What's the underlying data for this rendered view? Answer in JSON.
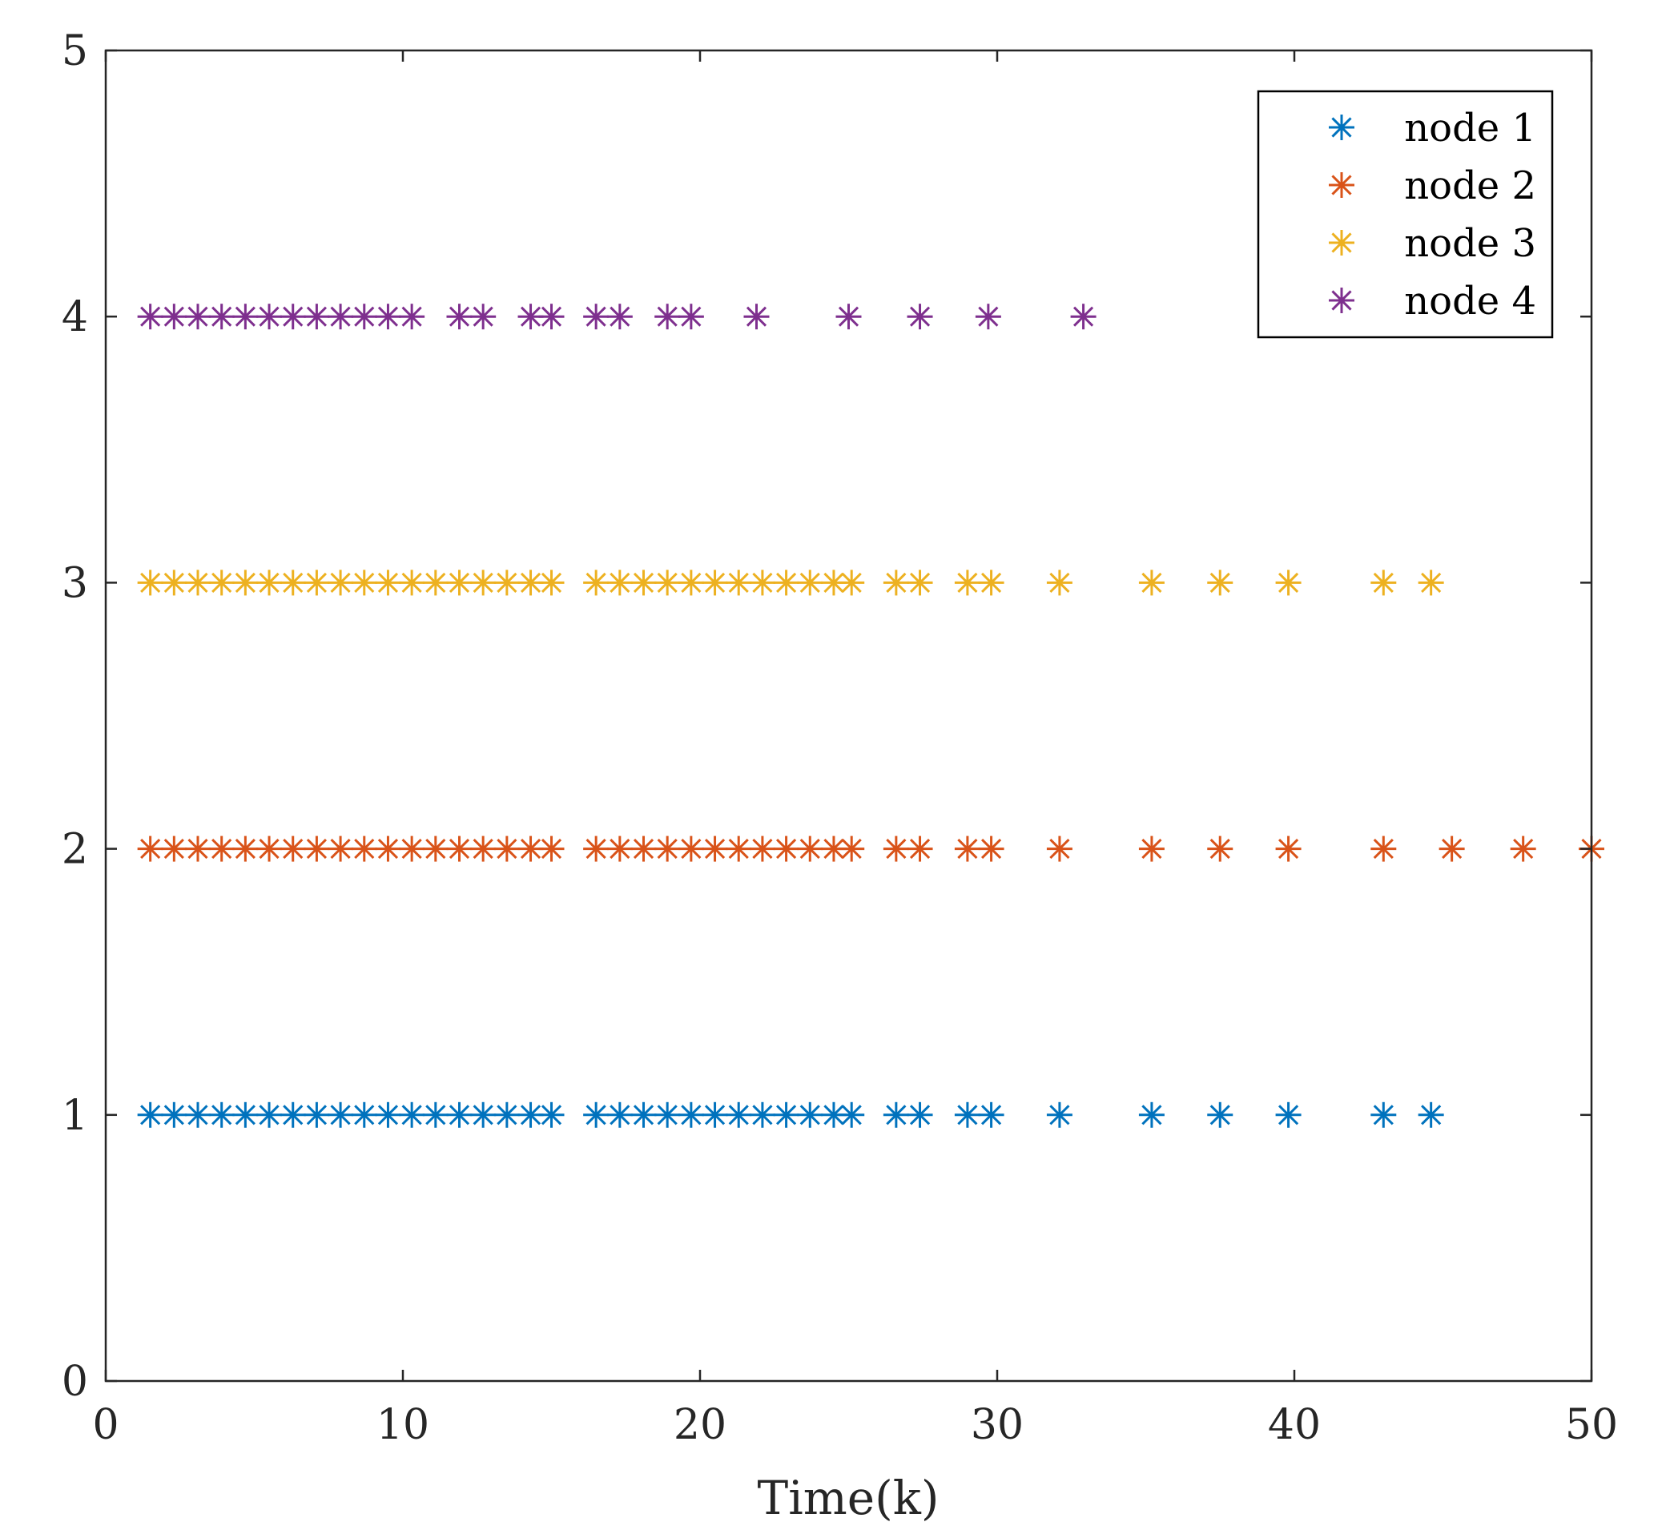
{
  "chart_data": {
    "type": "scatter",
    "title": "",
    "xlabel": "Time(k)",
    "ylabel": "",
    "xlim": [
      0,
      50
    ],
    "ylim": [
      0,
      5
    ],
    "xticks": [
      "0",
      "10",
      "20",
      "30",
      "40",
      "50"
    ],
    "yticks": [
      "0",
      "1",
      "2",
      "3",
      "4",
      "5"
    ],
    "grid": false,
    "legend_position": "top-right",
    "marker": "asterisk",
    "series": [
      {
        "name": "node 1",
        "color": "#0072BD",
        "y": 1,
        "x": [
          1.5,
          2.3,
          3.1,
          3.9,
          4.7,
          5.5,
          6.3,
          7.1,
          7.9,
          8.7,
          9.5,
          10.3,
          11.1,
          11.9,
          12.7,
          13.5,
          14.3,
          15.0,
          16.5,
          17.3,
          18.1,
          18.9,
          19.7,
          20.5,
          21.3,
          22.1,
          22.9,
          23.7,
          24.5,
          25.1,
          26.6,
          27.4,
          29.0,
          29.8,
          32.1,
          35.2,
          37.5,
          39.8,
          43.0,
          44.6
        ]
      },
      {
        "name": "node 2",
        "color": "#D95319",
        "y": 2,
        "x": [
          1.5,
          2.3,
          3.1,
          3.9,
          4.7,
          5.5,
          6.3,
          7.1,
          7.9,
          8.7,
          9.5,
          10.3,
          11.1,
          11.9,
          12.7,
          13.5,
          14.3,
          15.0,
          16.5,
          17.3,
          18.1,
          18.9,
          19.7,
          20.5,
          21.3,
          22.1,
          22.9,
          23.7,
          24.5,
          25.1,
          26.6,
          27.4,
          29.0,
          29.8,
          32.1,
          35.2,
          37.5,
          39.8,
          43.0,
          45.3,
          47.7,
          50.0
        ]
      },
      {
        "name": "node 3",
        "color": "#EDB120",
        "y": 3,
        "x": [
          1.5,
          2.3,
          3.1,
          3.9,
          4.7,
          5.5,
          6.3,
          7.1,
          7.9,
          8.7,
          9.5,
          10.3,
          11.1,
          11.9,
          12.7,
          13.5,
          14.3,
          15.0,
          16.5,
          17.3,
          18.1,
          18.9,
          19.7,
          20.5,
          21.3,
          22.1,
          22.9,
          23.7,
          24.5,
          25.1,
          26.6,
          27.4,
          29.0,
          29.8,
          32.1,
          35.2,
          37.5,
          39.8,
          43.0,
          44.6
        ]
      },
      {
        "name": "node 4",
        "color": "#7E2F8E",
        "y": 4,
        "x": [
          1.5,
          2.3,
          3.1,
          3.9,
          4.7,
          5.5,
          6.3,
          7.1,
          7.9,
          8.7,
          9.5,
          10.3,
          11.9,
          12.7,
          14.3,
          15.0,
          16.5,
          17.3,
          18.9,
          19.7,
          21.9,
          25.0,
          27.4,
          29.7,
          32.9
        ]
      }
    ]
  }
}
